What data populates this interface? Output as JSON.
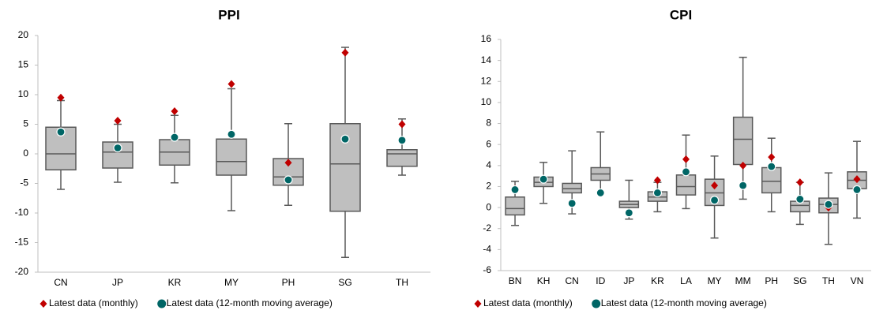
{
  "chart_data": [
    {
      "type": "box",
      "title": "PPI",
      "categories": [
        "CN",
        "JP",
        "KR",
        "MY",
        "PH",
        "SG",
        "TH"
      ],
      "boxes": {
        "whisker_high": [
          9,
          5,
          6.5,
          11,
          5.1,
          18,
          5.9
        ],
        "q3": [
          4.5,
          2.0,
          2.4,
          2.5,
          -0.8,
          5.1,
          0.7
        ],
        "median": [
          0,
          0.3,
          0.3,
          -1.3,
          -3.9,
          -1.7,
          0
        ],
        "q1": [
          -2.7,
          -2.4,
          -1.9,
          -3.6,
          -5.3,
          -9.7,
          -2.1
        ],
        "whisker_low": [
          -6,
          -4.8,
          -4.9,
          -9.6,
          -8.7,
          -17.5,
          -3.6
        ]
      },
      "series": [
        {
          "name": "Latest data (monthly)",
          "color": "#c00000",
          "marker": "diamond",
          "values": [
            9.5,
            5.6,
            7.2,
            11.8,
            -1.5,
            17.1,
            5.0
          ]
        },
        {
          "name": "Latest data (12-month moving average)",
          "color": "#006666",
          "marker": "circle",
          "values": [
            3.7,
            1.0,
            2.8,
            3.3,
            -4.4,
            2.5,
            2.3
          ]
        }
      ],
      "ylim": [
        -20,
        20
      ],
      "yticks": [
        -20,
        -15,
        -10,
        -5,
        0,
        5,
        10,
        15,
        20
      ],
      "box_color": "#bfbfbf"
    },
    {
      "type": "box",
      "title": "CPI",
      "categories": [
        "BN",
        "KH",
        "CN",
        "ID",
        "JP",
        "KR",
        "LA",
        "MY",
        "MM",
        "PH",
        "SG",
        "TH",
        "VN"
      ],
      "boxes": {
        "whisker_high": [
          2.5,
          4.3,
          5.4,
          7.2,
          2.6,
          2.4,
          6.9,
          4.9,
          14.3,
          6.6,
          2.4,
          3.3,
          6.3
        ],
        "q3": [
          1.0,
          2.9,
          2.3,
          3.8,
          0.6,
          1.5,
          3.1,
          2.7,
          8.6,
          3.8,
          0.6,
          0.9,
          3.4
        ],
        "median": [
          -0.1,
          2.4,
          1.8,
          3.2,
          0.3,
          1.0,
          2.0,
          1.4,
          6.5,
          2.5,
          0.2,
          0.3,
          2.6
        ],
        "q1": [
          -0.7,
          2.0,
          1.4,
          2.6,
          0.0,
          0.6,
          1.2,
          0.2,
          4.1,
          1.4,
          -0.4,
          -0.5,
          1.8
        ],
        "whisker_low": [
          -1.7,
          0.4,
          -0.6,
          1.4,
          -1.1,
          -0.4,
          -0.1,
          -2.9,
          0.8,
          -0.4,
          -1.6,
          -3.5,
          -1.0
        ]
      },
      "series": [
        {
          "name": "Latest data (monthly)",
          "color": "#c00000",
          "marker": "diamond",
          "values": [
            1.8,
            2.7,
            0.4,
            1.4,
            -0.5,
            2.6,
            4.6,
            2.1,
            4.0,
            4.8,
            2.4,
            0.0,
            2.7
          ]
        },
        {
          "name": "Latest data (12-month moving average)",
          "color": "#006666",
          "marker": "circle",
          "values": [
            1.7,
            2.7,
            0.4,
            1.4,
            -0.5,
            1.4,
            3.4,
            0.7,
            2.1,
            3.9,
            0.8,
            0.3,
            1.7
          ]
        }
      ],
      "ylim": [
        -6,
        16
      ],
      "yticks": [
        -6,
        -4,
        -2,
        0,
        2,
        4,
        6,
        8,
        10,
        12,
        14,
        16
      ],
      "box_color": "#bfbfbf"
    }
  ]
}
